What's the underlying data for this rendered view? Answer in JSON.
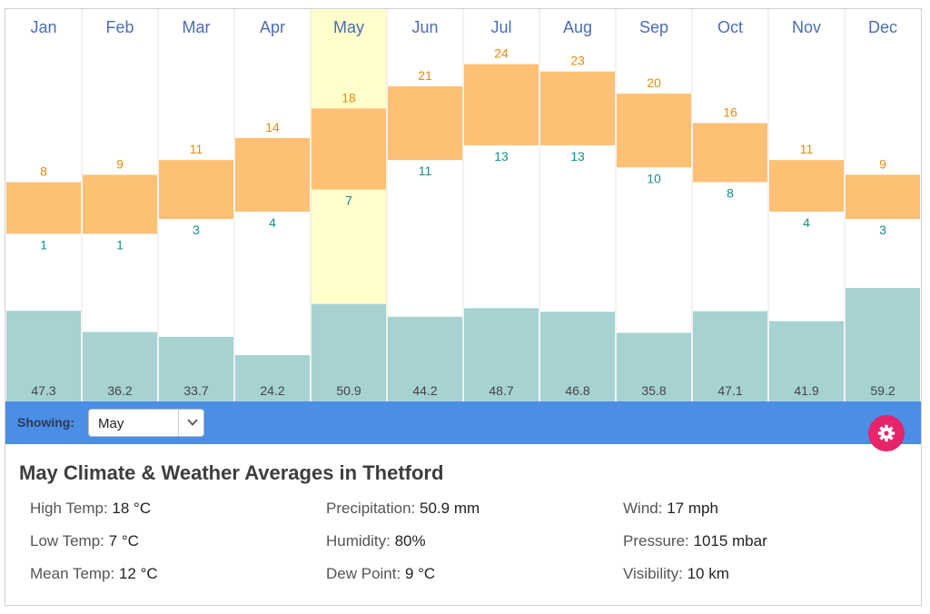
{
  "chart_data": {
    "type": "bar",
    "categories": [
      "Jan",
      "Feb",
      "Mar",
      "Apr",
      "May",
      "Jun",
      "Jul",
      "Aug",
      "Sep",
      "Oct",
      "Nov",
      "Dec"
    ],
    "series": [
      {
        "values": [
          8,
          9,
          11,
          14,
          18,
          21,
          24,
          23,
          20,
          16,
          11,
          9
        ]
      },
      {
        "values": [
          1,
          1,
          3,
          4,
          7,
          11,
          13,
          13,
          10,
          8,
          4,
          3
        ]
      },
      {
        "values": [
          47.3,
          36.2,
          33.7,
          24.2,
          50.9,
          44.2,
          48.7,
          46.8,
          35.8,
          47.1,
          41.9,
          59.2
        ]
      }
    ],
    "highlighted_category": "May",
    "colors": {
      "temp_range": "#fdc074",
      "high_label": "#e88a0c",
      "low_label": "#13908a",
      "precip": "#a6d2d2",
      "precip_label": "#444444",
      "month_label": "#4a6db5",
      "highlight": "#ffffcc",
      "grid": "#e4e4e4"
    }
  },
  "filter": {
    "label": "Showing:",
    "selected": "May",
    "chevron_icon": "chevron-down-icon"
  },
  "settings": {
    "icon": "gear-icon",
    "color": "#e6236b"
  },
  "summary": {
    "title": "May Climate & Weather Averages in Thetford",
    "stats": [
      {
        "label": "High Temp:",
        "value": "18 °C"
      },
      {
        "label": "Low Temp:",
        "value": "7 °C"
      },
      {
        "label": "Mean Temp:",
        "value": "12 °C"
      },
      {
        "label": "Precipitation:",
        "value": "50.9 mm"
      },
      {
        "label": "Humidity:",
        "value": "80%"
      },
      {
        "label": "Dew Point:",
        "value": "9 °C"
      },
      {
        "label": "Wind:",
        "value": "17 mph"
      },
      {
        "label": "Pressure:",
        "value": "1015 mbar"
      },
      {
        "label": "Visibility:",
        "value": "10 km"
      }
    ]
  }
}
